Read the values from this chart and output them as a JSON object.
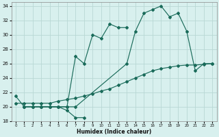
{
  "xlabel": "Humidex (Indice chaleur)",
  "bg_color": "#d8f0ee",
  "grid_color": "#b8d8d4",
  "line_color": "#1a6b5a",
  "xlim": [
    -0.5,
    23.5
  ],
  "ylim": [
    18,
    34.5
  ],
  "yticks": [
    18,
    20,
    22,
    24,
    26,
    28,
    30,
    32,
    34
  ],
  "xticks": [
    0,
    1,
    2,
    3,
    4,
    5,
    6,
    7,
    8,
    9,
    10,
    11,
    12,
    13,
    14,
    15,
    16,
    17,
    18,
    19,
    20,
    21,
    22,
    23
  ],
  "series1_x": [
    0,
    1,
    2,
    3,
    4,
    5,
    6,
    7,
    8
  ],
  "series1_y": [
    21.5,
    20.0,
    20.0,
    20.0,
    20.0,
    20.0,
    19.5,
    18.5,
    18.5
  ],
  "series2_x": [
    1,
    2,
    3,
    4,
    5,
    6,
    7,
    8,
    9,
    10,
    11,
    12,
    13
  ],
  "series2_y": [
    20.0,
    20.0,
    20.0,
    20.0,
    20.0,
    20.0,
    27.0,
    26.0,
    30.0,
    29.5,
    31.5,
    31.0,
    31.0
  ],
  "series3_x": [
    1,
    2,
    3,
    4,
    5,
    6,
    7,
    13,
    14,
    15,
    16,
    17,
    18,
    19,
    20,
    21,
    22,
    23
  ],
  "series3_y": [
    20.0,
    20.0,
    20.0,
    20.0,
    20.0,
    20.0,
    20.0,
    26.0,
    30.5,
    33.0,
    33.5,
    34.0,
    32.5,
    33.0,
    30.5,
    25.0,
    26.0,
    26.0
  ],
  "series4_x": [
    0,
    1,
    2,
    3,
    4,
    5,
    6,
    7,
    8,
    9,
    10,
    11,
    12,
    13,
    14,
    15,
    16,
    17,
    18,
    19,
    20,
    21,
    22,
    23
  ],
  "series4_y": [
    20.5,
    20.5,
    20.5,
    20.5,
    20.5,
    20.8,
    21.0,
    21.2,
    21.5,
    21.8,
    22.2,
    22.5,
    23.0,
    23.5,
    24.0,
    24.5,
    25.0,
    25.3,
    25.5,
    25.7,
    25.8,
    25.8,
    25.9,
    26.0
  ]
}
